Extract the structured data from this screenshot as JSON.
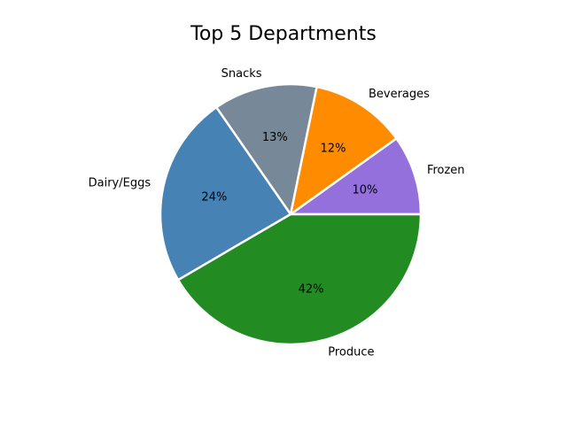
{
  "chart_data": {
    "type": "pie",
    "title": "Top 5 Departments",
    "slices": [
      {
        "label": "Frozen",
        "value": 10,
        "pct_label": "10%",
        "color": "#9370DB"
      },
      {
        "label": "Beverages",
        "value": 12,
        "pct_label": "12%",
        "color": "#FF8C00"
      },
      {
        "label": "Snacks",
        "value": 13,
        "pct_label": "13%",
        "color": "#778899"
      },
      {
        "label": "Dairy/Eggs",
        "value": 24,
        "pct_label": "24%",
        "color": "#4682B4"
      },
      {
        "label": "Produce",
        "value": 42,
        "pct_label": "42%",
        "color": "#228B22"
      }
    ],
    "start_angle_deg": 0,
    "direction": "counterclockwise",
    "edge_color": "#ffffff"
  }
}
